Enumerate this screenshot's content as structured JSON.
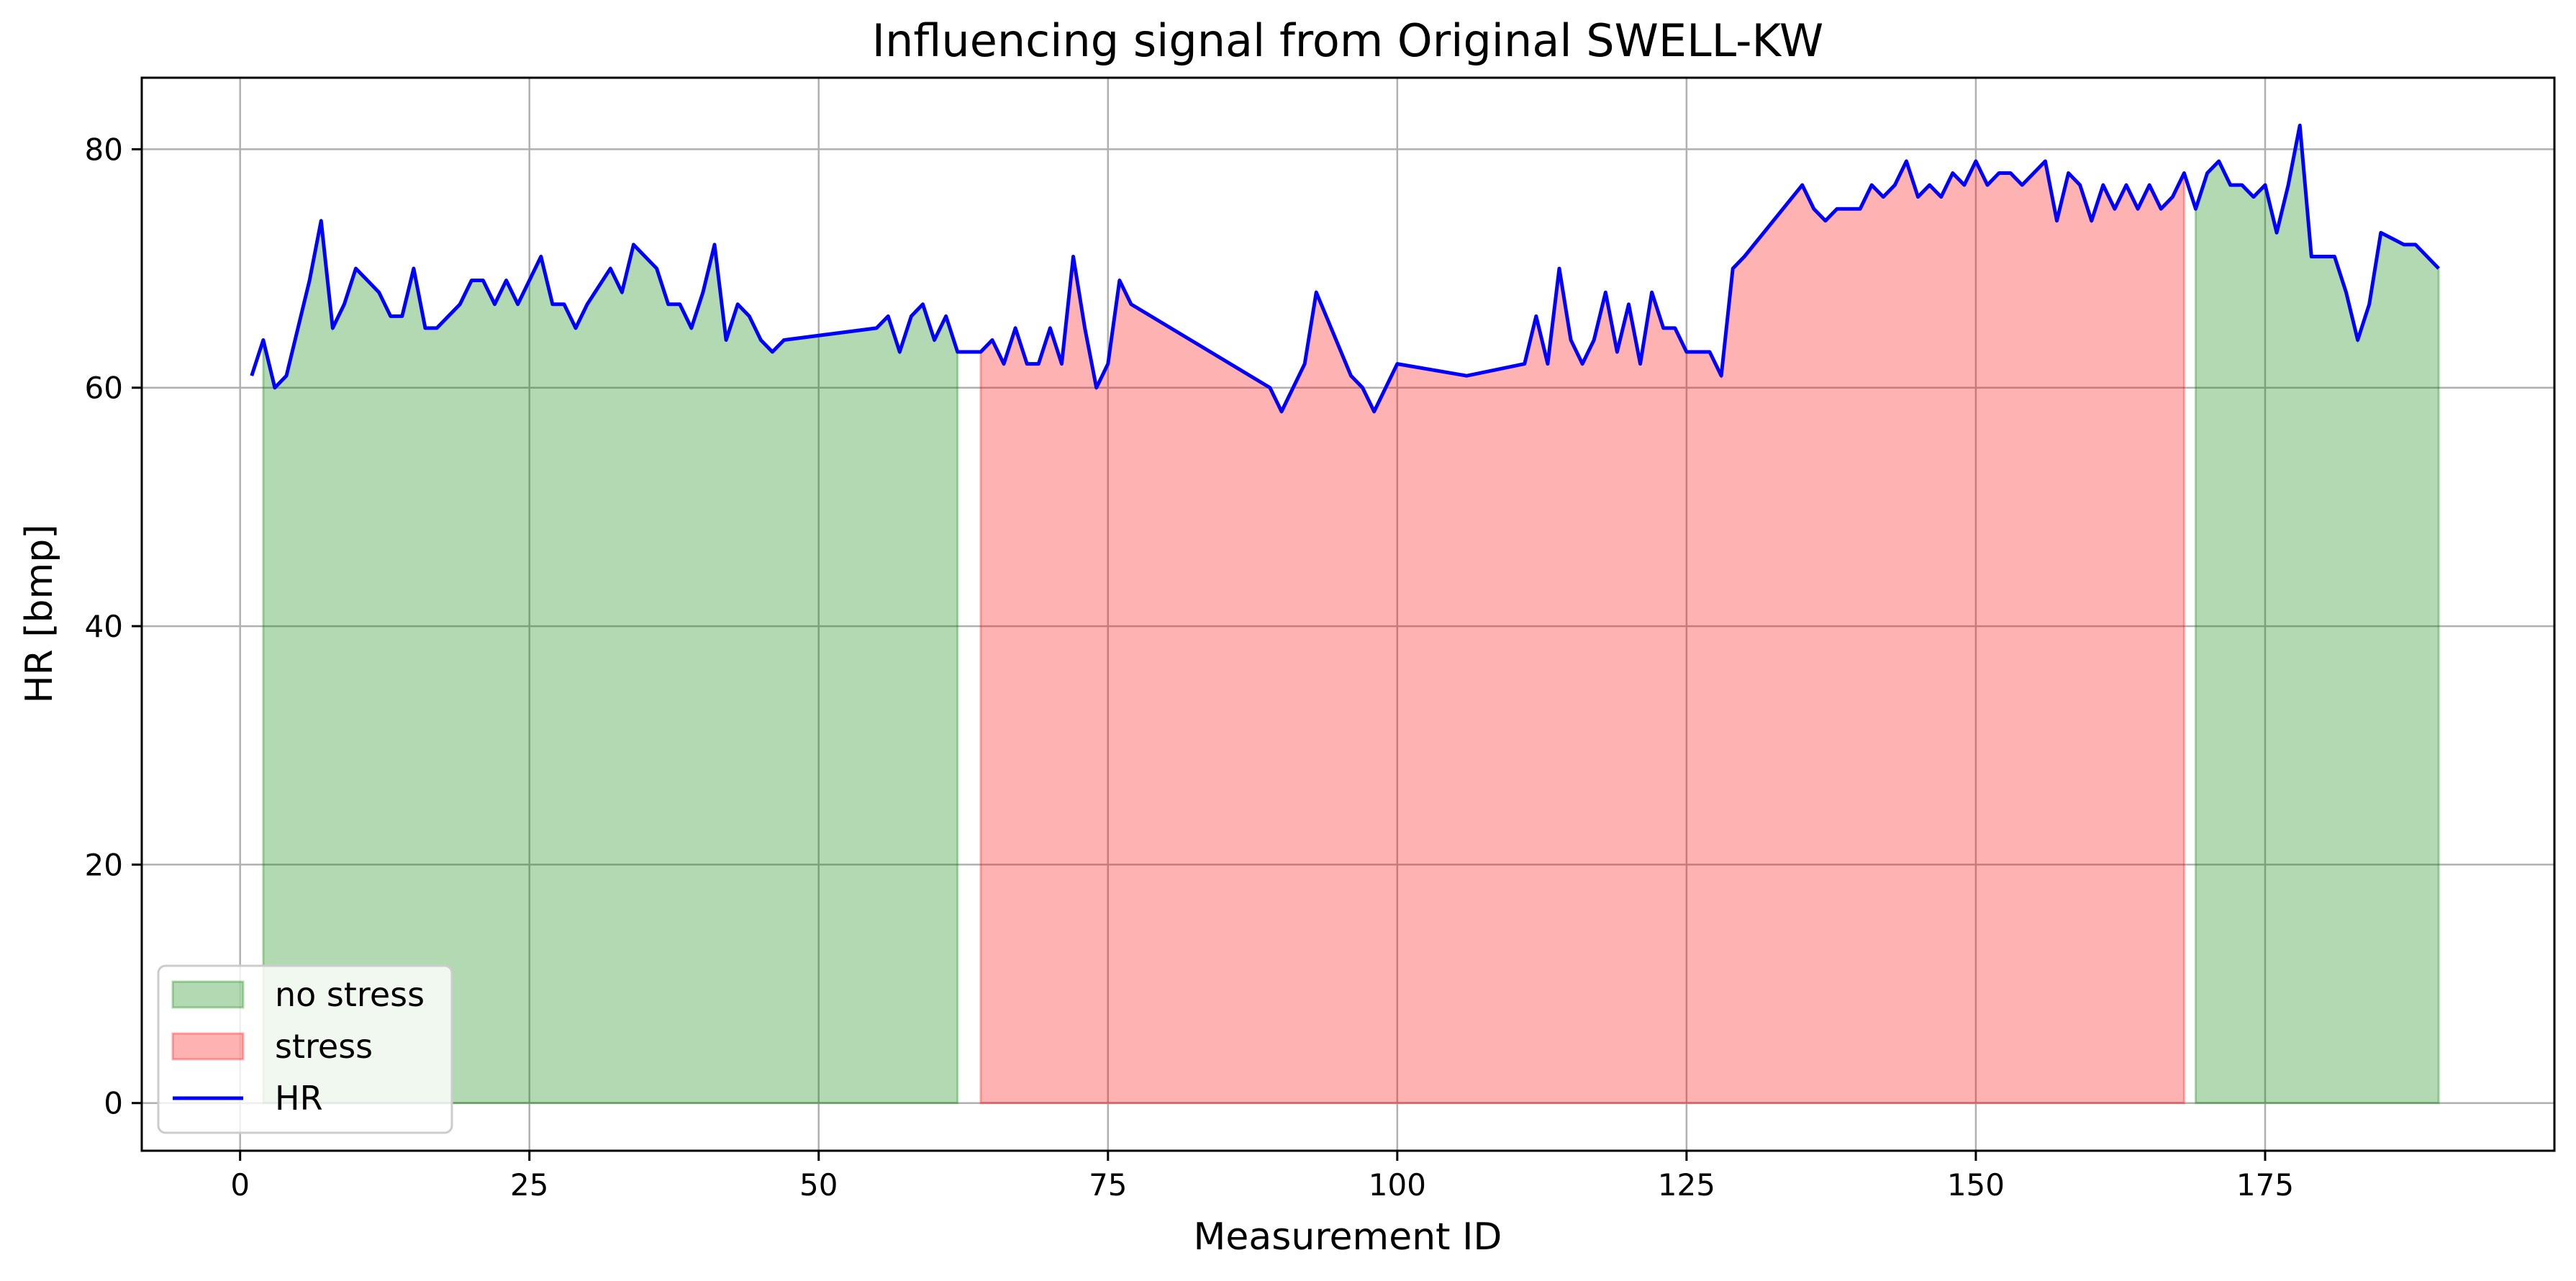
{
  "chart_data": {
    "type": "area",
    "title": "Influencing signal from Original SWELL-KW",
    "xlabel": "Measurement ID",
    "ylabel": "HR [bmp]",
    "xlim": [
      -8.5,
      200
    ],
    "ylim": [
      -4,
      86
    ],
    "xticks": [
      0,
      25,
      50,
      75,
      100,
      125,
      150,
      175
    ],
    "yticks": [
      0,
      20,
      40,
      60,
      80
    ],
    "grid": true,
    "legend_position": "lower-left",
    "colors": {
      "no_stress": "#008000",
      "stress": "#ff0000",
      "hr": "#0000ff",
      "grid": "#b0b0b0"
    },
    "series": [
      {
        "name": "no stress",
        "kind": "fill",
        "x": [
          2,
          62
        ]
      },
      {
        "name": "stress",
        "kind": "fill",
        "x": [
          64,
          168
        ]
      },
      {
        "name": "no stress",
        "kind": "fill",
        "x": [
          169,
          190
        ]
      },
      {
        "name": "HR",
        "kind": "line"
      }
    ],
    "legend": [
      "no stress",
      "stress",
      "HR"
    ],
    "hr": {
      "x": [
        1,
        2,
        3,
        4,
        6,
        7,
        8,
        9,
        10,
        12,
        13,
        14,
        15,
        16,
        17,
        19,
        20,
        21,
        22,
        23,
        24,
        26,
        27,
        28,
        29,
        30,
        32,
        33,
        34,
        36,
        37,
        38,
        39,
        40,
        41,
        42,
        43,
        44,
        45,
        46,
        47,
        55,
        56,
        57,
        58,
        59,
        60,
        61,
        62,
        64,
        65,
        66,
        67,
        68,
        69,
        70,
        71,
        72,
        73,
        74,
        75,
        76,
        77,
        89,
        90,
        92,
        93,
        96,
        97,
        98,
        100,
        106,
        111,
        112,
        113,
        114,
        115,
        116,
        117,
        118,
        119,
        120,
        121,
        122,
        123,
        124,
        125,
        126,
        127,
        128,
        129,
        130,
        135,
        136,
        137,
        138,
        140,
        141,
        142,
        143,
        144,
        145,
        146,
        147,
        148,
        149,
        150,
        151,
        152,
        153,
        154,
        156,
        157,
        158,
        159,
        160,
        161,
        162,
        163,
        164,
        165,
        166,
        167,
        168,
        169,
        170,
        171,
        172,
        173,
        174,
        175,
        176,
        177,
        178,
        179,
        180,
        181,
        182,
        183,
        184,
        185,
        186,
        187,
        188,
        190
      ],
      "y": [
        61,
        64,
        60,
        61,
        69,
        74,
        65,
        67,
        70,
        68,
        66,
        66,
        70,
        65,
        65,
        67,
        69,
        69,
        67,
        69,
        67,
        71,
        67,
        67,
        65,
        67,
        70,
        68,
        72,
        70,
        67,
        67,
        65,
        68,
        72,
        64,
        67,
        66,
        64,
        63,
        64,
        65,
        66,
        63,
        66,
        67,
        64,
        66,
        63,
        63,
        64,
        62,
        65,
        62,
        62,
        65,
        62,
        71,
        65,
        60,
        62,
        69,
        67,
        60,
        58,
        62,
        68,
        61,
        60,
        58,
        62,
        61,
        62,
        66,
        62,
        70,
        64,
        62,
        64,
        68,
        63,
        67,
        62,
        68,
        65,
        65,
        63,
        63,
        63,
        61,
        70,
        71,
        77,
        75,
        74,
        75,
        75,
        77,
        76,
        77,
        79,
        76,
        77,
        76,
        78,
        77,
        79,
        77,
        78,
        78,
        77,
        79,
        74,
        78,
        77,
        74,
        77,
        75,
        77,
        75,
        77,
        75,
        76,
        78,
        75,
        78,
        79,
        77,
        77,
        76,
        77,
        73,
        77,
        82,
        71,
        71,
        71,
        68,
        64,
        67,
        73,
        72.5,
        72,
        72,
        70
      ]
    }
  }
}
